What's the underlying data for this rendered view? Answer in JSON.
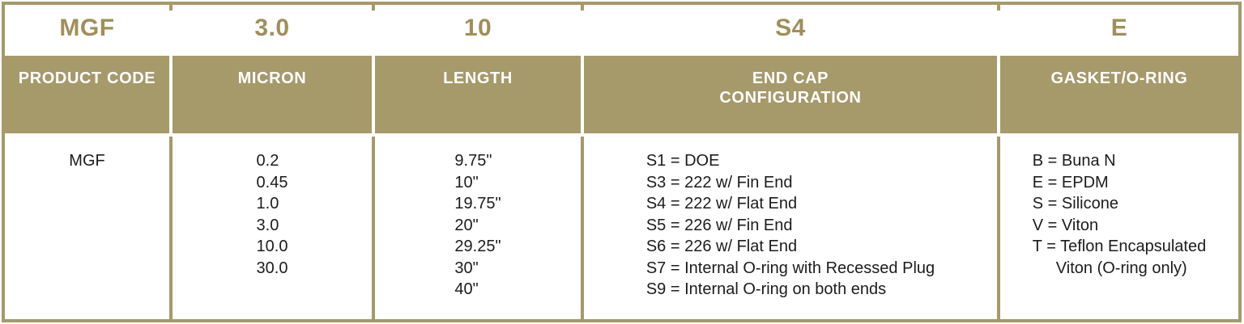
{
  "colors": {
    "gold": "#A6996A",
    "gold_text": "#A08F5A",
    "header_text": "#FFFFFF",
    "body_text": "#1C1C1C",
    "background": "#FFFFFF"
  },
  "code_row": {
    "product_code": "MGF",
    "micron": "3.0",
    "length": "10",
    "end_cap": "S4",
    "gasket": "E"
  },
  "headers": {
    "product_code": "PRODUCT CODE",
    "micron": "MICRON",
    "length": "LENGTH",
    "end_cap_line1": "END CAP",
    "end_cap_line2": "CONFIGURATION",
    "gasket": "GASKET/O-RING"
  },
  "body": {
    "product_code": "MGF",
    "micron_values": [
      "0.2",
      "0.45",
      "1.0",
      "3.0",
      "10.0",
      "30.0"
    ],
    "length_values": [
      "9.75\"",
      "10\"",
      "19.75\"",
      "20\"",
      "29.25\"",
      "30\"",
      "40\""
    ],
    "end_cap_options": [
      "S1 = DOE",
      "S3 = 222 w/ Fin End",
      "S4 = 222 w/ Flat End",
      "S5 = 226 w/ Fin End",
      "S6 = 226 w/ Flat End",
      "S7 = Internal O-ring with Recessed Plug",
      "S9 = Internal O-ring on both ends"
    ],
    "gasket_options": [
      "B = Buna N",
      "E = EPDM",
      "S = Silicone",
      "V = Viton",
      "T = Teflon Encapsulated",
      "Viton (O-ring only)"
    ]
  }
}
